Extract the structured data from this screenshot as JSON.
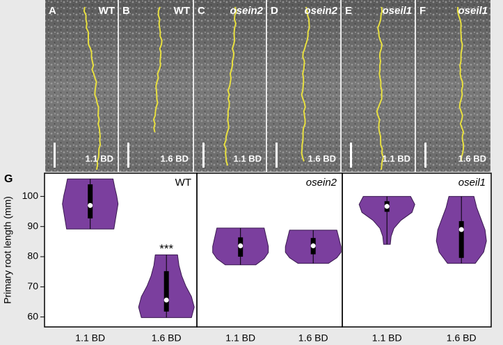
{
  "images": [
    {
      "letter": "A",
      "genotype": "WT",
      "bd": "1.1 BD"
    },
    {
      "letter": "B",
      "genotype": "WT",
      "bd": "1.6 BD"
    },
    {
      "letter": "C",
      "genotype": "osein2",
      "bd": "1.1 BD"
    },
    {
      "letter": "D",
      "genotype": "osein2",
      "bd": "1.6 BD"
    },
    {
      "letter": "E",
      "genotype": "oseil1",
      "bd": "1.1 BD"
    },
    {
      "letter": "F",
      "genotype": "oseil1",
      "bd": "1.6 BD"
    }
  ],
  "chart_data": {
    "type": "violin",
    "label": "G",
    "ylabel": "Primary root length (mm)",
    "ylim": [
      56.7,
      107.7
    ],
    "yticks": [
      60,
      70,
      80,
      90,
      100
    ],
    "color": "#7b3f9e",
    "panels": [
      {
        "title": "WT",
        "title_italic": false,
        "categories": [
          "1.1 BD",
          "1.6 BD"
        ],
        "significance": [
          null,
          "***"
        ],
        "series": [
          {
            "min": 89.2,
            "max": 105.8,
            "q1": 92.7,
            "q3": 104,
            "median": 97,
            "density": [
              0.85,
              0.9,
              0.95,
              1,
              0.95,
              0.88,
              0.82
            ]
          },
          {
            "min": 59.8,
            "max": 80.6,
            "q1": 61.8,
            "q3": 75.2,
            "median": 65.6,
            "density": [
              0.9,
              1,
              0.9,
              0.7,
              0.55,
              0.45,
              0.4
            ]
          }
        ]
      },
      {
        "title": "osein2",
        "title_italic": true,
        "categories": [
          "1.1 BD",
          "1.6 BD"
        ],
        "significance": [
          null,
          null
        ],
        "series": [
          {
            "min": 77.3,
            "max": 89.5,
            "q1": 80,
            "q3": 86.4,
            "median": 83.6,
            "density": [
              0.55,
              0.85,
              1,
              1,
              0.95,
              0.9,
              0.85
            ]
          },
          {
            "min": 77.8,
            "max": 88.8,
            "q1": 80.8,
            "q3": 86.2,
            "median": 83.6,
            "density": [
              0.55,
              0.85,
              1,
              1,
              0.95,
              0.9,
              0.85
            ]
          }
        ]
      },
      {
        "title": "oseil1",
        "title_italic": true,
        "categories": [
          "1.1 BD",
          "1.6 BD"
        ],
        "significance": [
          null,
          null
        ],
        "series": [
          {
            "min": 84.1,
            "max": 100,
            "q1": 94.9,
            "q3": 98.4,
            "median": 96.7,
            "density": [
              0.12,
              0.15,
              0.25,
              0.5,
              0.9,
              1,
              0.85
            ]
          },
          {
            "min": 77.8,
            "max": 100,
            "q1": 79.6,
            "q3": 91.8,
            "median": 89,
            "density": [
              0.5,
              0.8,
              0.9,
              0.85,
              0.7,
              0.55,
              0.45
            ]
          }
        ]
      }
    ]
  }
}
